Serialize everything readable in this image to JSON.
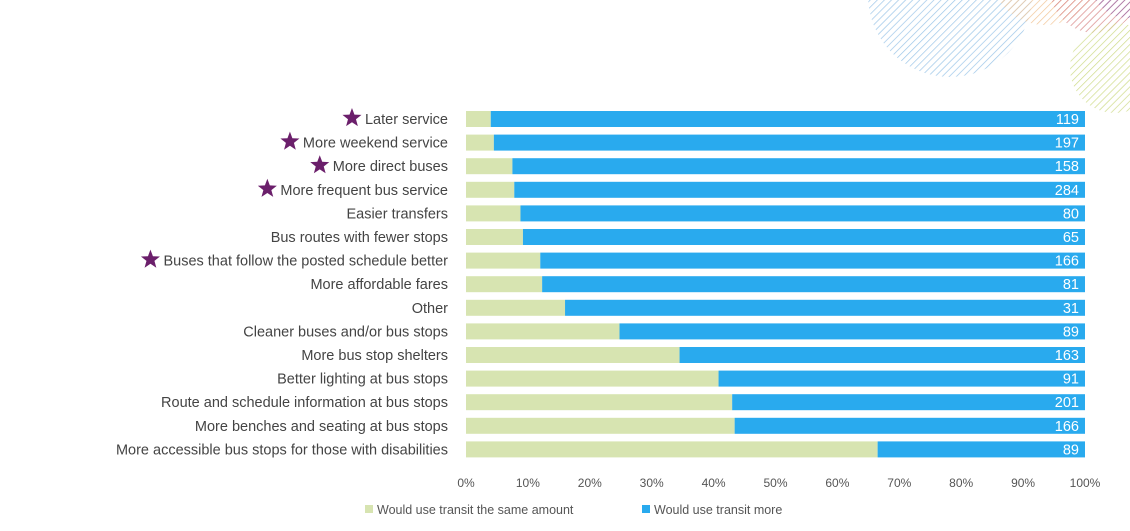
{
  "chart_data": {
    "type": "bar",
    "orientation": "horizontal",
    "stacked": "percent",
    "title": "",
    "xlabel": "",
    "ylabel": "",
    "xlim": [
      0,
      100
    ],
    "x_ticks": [
      "0%",
      "10%",
      "20%",
      "30%",
      "40%",
      "50%",
      "60%",
      "70%",
      "80%",
      "90%",
      "100%"
    ],
    "grid": false,
    "legend_position": "bottom",
    "categories": [
      "Later service",
      "More weekend service",
      "More direct buses",
      "More frequent bus service",
      "Easier transfers",
      "Bus routes with fewer stops",
      "Buses that follow the posted schedule better",
      "More affordable fares",
      "Other",
      "Cleaner buses and/or bus stops",
      "More bus stop shelters",
      "Better lighting at bus stops",
      "Route and schedule information at bus stops",
      "More benches and seating at bus stops",
      "More accessible bus stops for those with disabilities"
    ],
    "starred": [
      true,
      true,
      true,
      true,
      false,
      false,
      true,
      false,
      false,
      false,
      false,
      false,
      false,
      false,
      false
    ],
    "series": [
      {
        "name": "Would use transit the same amount",
        "color": "#d7e4b1",
        "values": [
          4,
          4.5,
          7.5,
          7.8,
          8.8,
          9.2,
          12,
          12.3,
          16,
          24.8,
          34.5,
          40.8,
          43,
          43.4,
          66.5
        ]
      },
      {
        "name": "Would use transit more",
        "color": "#29aaee",
        "values": [
          96,
          95.5,
          92.5,
          92.2,
          91.2,
          90.8,
          88,
          87.7,
          84,
          75.2,
          65.5,
          59.2,
          57,
          56.6,
          33.5
        ]
      }
    ],
    "data_labels": [
      119,
      197,
      158,
      284,
      80,
      65,
      166,
      81,
      31,
      89,
      163,
      91,
      201,
      166,
      89
    ],
    "star_color": "#6b1f6b"
  }
}
